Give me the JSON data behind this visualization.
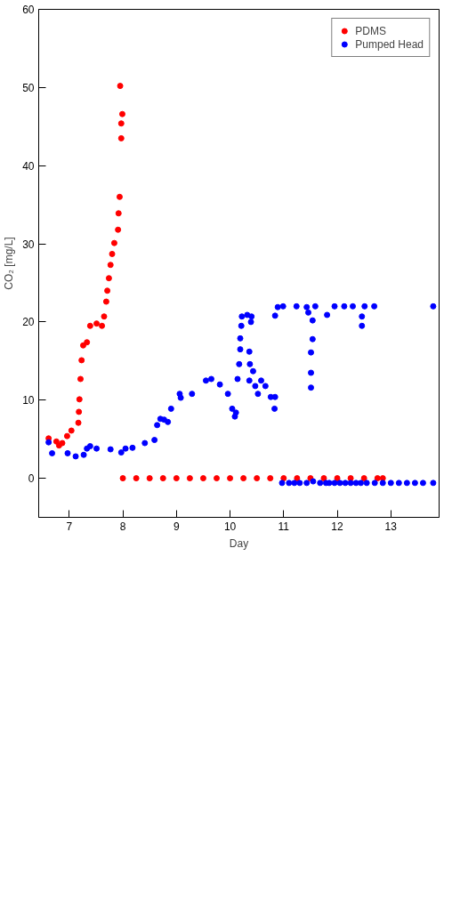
{
  "chart_data": {
    "type": "scatter",
    "xlabel": "Day",
    "ylabel": "CO₂ [mg/L]",
    "xlim": [
      6.43,
      13.9
    ],
    "ylim": [
      -5,
      60
    ],
    "xticks": [
      7,
      8,
      9,
      10,
      11,
      12,
      13
    ],
    "yticks": [
      0,
      10,
      20,
      30,
      40,
      50,
      60
    ],
    "grid": false,
    "legend": "top right",
    "marker": "circle",
    "series": [
      {
        "name": "PDMS",
        "color": "#ff0000",
        "x": [
          6.615,
          6.76,
          6.81,
          6.87,
          6.96,
          7.04,
          7.17,
          7.18,
          7.19,
          7.21,
          7.23,
          7.26,
          7.33,
          7.39,
          7.51,
          7.61,
          7.65,
          7.69,
          7.71,
          7.74,
          7.77,
          7.8,
          7.84,
          7.91,
          7.92,
          7.94,
          7.97,
          7.97,
          7.99,
          7.95,
          8.0,
          8.25,
          8.5,
          8.75,
          9.0,
          9.25,
          9.5,
          9.75,
          10.0,
          10.25,
          10.5,
          10.75,
          11.0,
          11.25,
          11.5,
          11.75,
          12.0,
          12.25,
          12.5,
          12.75,
          12.85
        ],
        "values": [
          5.1,
          4.7,
          4.2,
          4.5,
          5.4,
          6.1,
          7.1,
          8.5,
          10.1,
          12.7,
          15.1,
          17.0,
          17.4,
          19.5,
          19.8,
          19.5,
          20.7,
          22.6,
          24.0,
          25.6,
          27.3,
          28.7,
          30.1,
          31.8,
          33.9,
          36.0,
          43.5,
          45.4,
          46.6,
          50.2,
          0,
          0,
          0,
          0,
          0,
          0,
          0,
          0,
          0,
          0,
          0,
          0,
          0,
          0,
          0,
          0,
          0,
          0,
          0,
          0,
          0
        ]
      },
      {
        "name": "Pumped Head",
        "color": "#0000ff",
        "x": [
          6.615,
          6.68,
          6.97,
          7.12,
          7.27,
          7.33,
          7.39,
          7.51,
          7.77,
          7.97,
          8.05,
          8.18,
          8.41,
          8.59,
          8.64,
          8.7,
          8.77,
          8.84,
          8.9,
          9.06,
          9.08,
          9.29,
          9.55,
          9.65,
          9.81,
          9.96,
          10.04,
          10.09,
          10.11,
          10.14,
          10.17,
          10.19,
          10.19,
          10.21,
          10.22,
          10.32,
          10.4,
          10.39,
          10.36,
          10.37,
          10.36,
          10.43,
          10.47,
          10.52,
          10.58,
          10.66,
          10.76,
          10.83,
          10.84,
          10.84,
          10.89,
          10.99,
          11.24,
          11.43,
          11.46,
          11.54,
          11.51,
          11.51,
          11.51,
          11.54,
          11.59,
          11.81,
          11.95,
          12.13,
          12.29,
          12.46,
          12.46,
          12.51,
          12.69,
          13.79,
          10.97,
          11.1,
          11.2,
          11.3,
          11.43,
          11.55,
          11.68,
          11.79,
          11.85,
          11.95,
          12.05,
          12.15,
          12.25,
          12.35,
          12.44,
          12.55,
          12.7,
          12.85,
          13.0,
          13.15,
          13.3,
          13.45,
          13.6,
          13.79
        ],
        "values": [
          4.6,
          3.2,
          3.2,
          2.8,
          3.0,
          3.8,
          4.1,
          3.8,
          3.7,
          3.3,
          3.8,
          3.9,
          4.5,
          4.9,
          6.8,
          7.6,
          7.5,
          7.2,
          8.9,
          10.8,
          10.3,
          10.8,
          12.5,
          12.7,
          12.0,
          10.8,
          8.9,
          7.9,
          8.4,
          12.7,
          14.6,
          16.5,
          17.9,
          19.5,
          20.7,
          20.9,
          20.7,
          20.0,
          16.2,
          14.6,
          12.5,
          13.7,
          11.8,
          10.8,
          12.5,
          11.8,
          10.4,
          8.9,
          10.4,
          20.8,
          21.9,
          22.0,
          22.0,
          21.9,
          21.2,
          20.2,
          11.6,
          13.5,
          16.1,
          17.8,
          22.0,
          20.9,
          22.0,
          22.0,
          22.0,
          20.7,
          19.5,
          22.0,
          22.0,
          22.0,
          -0.6,
          -0.6,
          -0.6,
          -0.6,
          -0.6,
          -0.4,
          -0.6,
          -0.6,
          -0.6,
          -0.6,
          -0.6,
          -0.6,
          -0.6,
          -0.6,
          -0.6,
          -0.6,
          -0.6,
          -0.6,
          -0.6,
          -0.6,
          -0.6,
          -0.6,
          -0.6,
          -0.6
        ]
      }
    ]
  }
}
